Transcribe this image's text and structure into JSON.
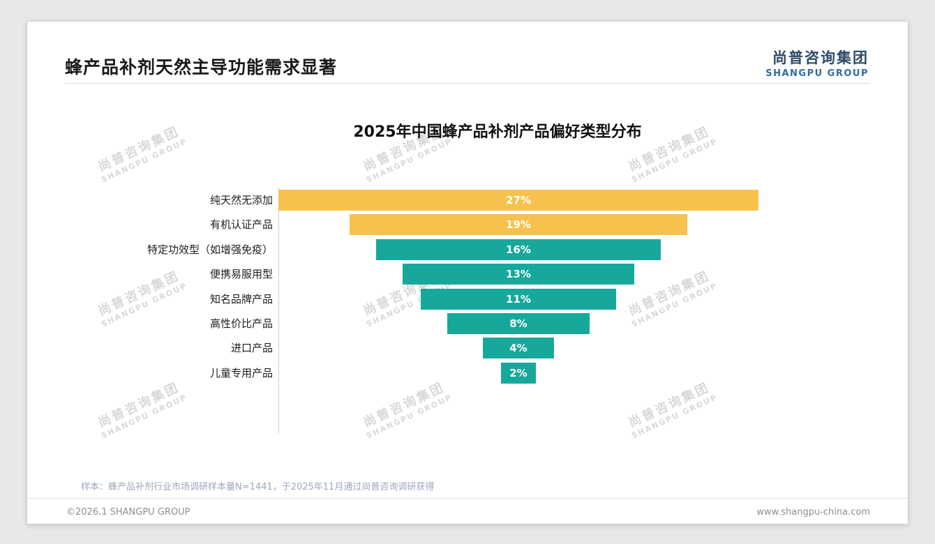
{
  "header": {
    "title": "蜂产品补剂天然主导功能需求显著",
    "logo_cn": "尚普咨询集团",
    "logo_en": "SHANGPU GROUP"
  },
  "watermark": {
    "cn": "尚普咨询集团",
    "en": "SHANGPU GROUP"
  },
  "chart_data": {
    "type": "bar",
    "title": "2025年中国蜂产品补剂产品偏好类型分布",
    "layout": "horizontal centered funnel bars, category labels on left axis, percentage labels inside bars",
    "categories": [
      "纯天然无添加",
      "有机认证产品",
      "特定功效型（如增强免疫）",
      "便携易服用型",
      "知名品牌产品",
      "高性价比产品",
      "进口产品",
      "儿童专用产品"
    ],
    "values": [
      27,
      19,
      16,
      13,
      11,
      8,
      4,
      2
    ],
    "value_labels": [
      "27%",
      "19%",
      "16%",
      "13%",
      "11%",
      "8%",
      "4%",
      "2%"
    ],
    "bar_colors": [
      "#F6C24D",
      "#F6C24D",
      "#17A89B",
      "#17A89B",
      "#17A89B",
      "#17A89B",
      "#17A89B",
      "#17A89B"
    ],
    "xlim": [
      0,
      27
    ],
    "grid": false,
    "legend": false
  },
  "footer": {
    "note": "样本：蜂产品补剂行业市场调研样本量N=1441，于2025年11月通过尚普咨询调研获得",
    "copyright": "©2026.1 SHANGPU GROUP",
    "website": "www.shangpu-china.com"
  }
}
